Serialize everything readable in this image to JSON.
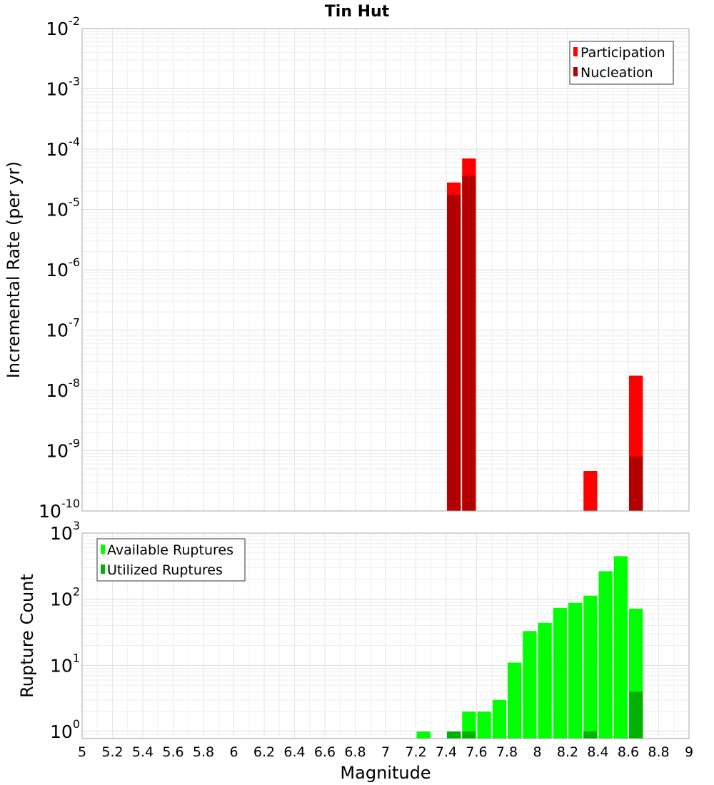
{
  "chart_data": [
    {
      "type": "bar",
      "title": "Tin Hut",
      "xlabel": "",
      "ylabel": "Incremental Rate (per yr)",
      "yscale": "log",
      "ylim": [
        1e-10,
        0.01
      ],
      "xlim": [
        5,
        9
      ],
      "grid": true,
      "legend_position": "top-right",
      "bin_width": 0.1,
      "y_ticks": [
        {
          "base": "10",
          "exp": "-10",
          "value": 1e-10
        },
        {
          "base": "10",
          "exp": "-9",
          "value": 1e-09
        },
        {
          "base": "10",
          "exp": "-8",
          "value": 1e-08
        },
        {
          "base": "10",
          "exp": "-7",
          "value": 1e-07
        },
        {
          "base": "10",
          "exp": "-6",
          "value": 1e-06
        },
        {
          "base": "10",
          "exp": "-5",
          "value": 1e-05
        },
        {
          "base": "10",
          "exp": "-4",
          "value": 0.0001
        },
        {
          "base": "10",
          "exp": "-3",
          "value": 0.001
        },
        {
          "base": "10",
          "exp": "-2",
          "value": 0.01
        }
      ],
      "series": [
        {
          "name": "Participation",
          "color": "#ff0000",
          "points": [
            {
              "x": 7.45,
              "y": 2.8e-05
            },
            {
              "x": 7.55,
              "y": 7e-05
            },
            {
              "x": 8.35,
              "y": 4.6e-10
            },
            {
              "x": 8.65,
              "y": 1.75e-08
            }
          ]
        },
        {
          "name": "Nucleation",
          "color": "#b30000",
          "points": [
            {
              "x": 7.45,
              "y": 1.75e-05
            },
            {
              "x": 7.55,
              "y": 3.6e-05
            },
            {
              "x": 8.65,
              "y": 8e-10
            }
          ]
        }
      ]
    },
    {
      "type": "bar",
      "title": "",
      "xlabel": "Magnitude",
      "ylabel": "Rupture Count",
      "yscale": "log",
      "ylim": [
        0.78,
        1000
      ],
      "xlim": [
        5,
        9
      ],
      "grid": true,
      "legend_position": "top-left",
      "bin_width": 0.1,
      "x_ticks": [
        "5",
        "5.2",
        "5.4",
        "5.6",
        "5.8",
        "6",
        "6.2",
        "6.4",
        "6.6",
        "6.8",
        "7",
        "7.2",
        "7.4",
        "7.6",
        "7.8",
        "8",
        "8.2",
        "8.4",
        "8.6",
        "8.8",
        "9"
      ],
      "y_ticks": [
        {
          "base": "10",
          "exp": "0",
          "value": 1
        },
        {
          "base": "10",
          "exp": "1",
          "value": 10
        },
        {
          "base": "10",
          "exp": "2",
          "value": 100
        },
        {
          "base": "10",
          "exp": "3",
          "value": 1000
        }
      ],
      "series": [
        {
          "name": "Available Ruptures",
          "color": "#00ff00",
          "points": [
            {
              "x": 7.25,
              "y": 1
            },
            {
              "x": 7.45,
              "y": 1
            },
            {
              "x": 7.55,
              "y": 2
            },
            {
              "x": 7.65,
              "y": 2
            },
            {
              "x": 7.75,
              "y": 3
            },
            {
              "x": 7.85,
              "y": 11
            },
            {
              "x": 7.95,
              "y": 33
            },
            {
              "x": 8.05,
              "y": 44
            },
            {
              "x": 8.15,
              "y": 74
            },
            {
              "x": 8.25,
              "y": 88
            },
            {
              "x": 8.35,
              "y": 113
            },
            {
              "x": 8.45,
              "y": 265
            },
            {
              "x": 8.55,
              "y": 447
            },
            {
              "x": 8.65,
              "y": 72
            }
          ]
        },
        {
          "name": "Utilized Ruptures",
          "color": "#00b300",
          "points": [
            {
              "x": 7.45,
              "y": 1
            },
            {
              "x": 7.55,
              "y": 1
            },
            {
              "x": 8.35,
              "y": 1
            },
            {
              "x": 8.65,
              "y": 4
            }
          ]
        }
      ]
    }
  ]
}
